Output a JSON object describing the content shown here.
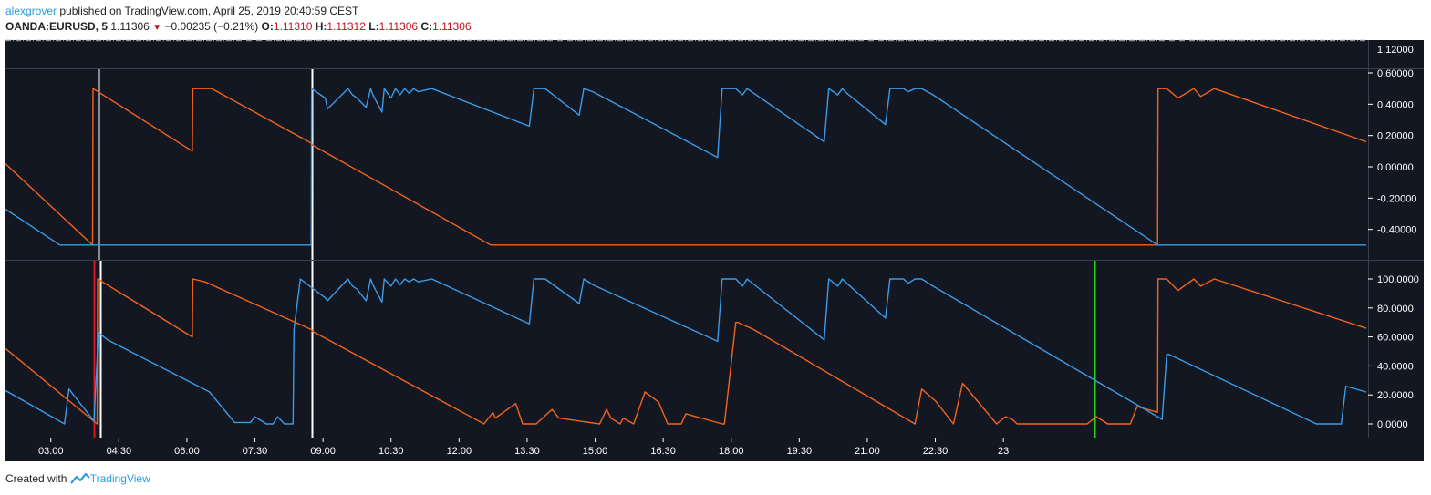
{
  "header": {
    "author": "alexgrover",
    "published_text": "published on TradingView.com, April 25, 2019 20:40:59 CEST",
    "symbol": "OANDA:EURUSD, 5",
    "last": "1.11306",
    "change": "−0.00235 (−0.21%)",
    "o_label": "O:",
    "o_value": "1.11310",
    "h_label": "H:",
    "h_value": "1.11312",
    "l_label": "L:",
    "l_value": "1.11306",
    "c_label": "C:",
    "c_value": "1.11306"
  },
  "footer": {
    "created_with": "Created with",
    "brand": "TradingView"
  },
  "colors": {
    "background": "#131722",
    "orange": "#f4631d",
    "blue": "#3c9be6",
    "marker_white": "#ffffff",
    "marker_red": "#e5111c",
    "marker_green": "#26d41c"
  },
  "chart_data": [
    {
      "type": "line",
      "pane": "price",
      "y_ticks": [
        "1.12000"
      ]
    },
    {
      "type": "line",
      "pane": "oscillator-1",
      "ylim": [
        -0.55,
        0.62
      ],
      "y_ticks": [
        {
          "value": 0.6,
          "label": "0.60000"
        },
        {
          "value": 0.4,
          "label": "0.40000"
        },
        {
          "value": 0.2,
          "label": "0.20000"
        },
        {
          "value": 0.0,
          "label": "0.00000"
        },
        {
          "value": -0.2,
          "label": "-0.20000"
        },
        {
          "value": -0.4,
          "label": "-0.40000"
        }
      ],
      "series": [
        {
          "color": "#f4631d",
          "x": [
            0,
            1.92,
            1.93,
            4.12,
            4.13,
            4.55,
            6.75,
            6.76,
            10.7,
            25.4,
            25.41,
            25.6,
            25.85,
            26.2,
            26.35,
            26.65,
            30.0
          ],
          "y": [
            0.02,
            -0.5,
            0.5,
            0.1,
            0.5,
            0.5,
            0.15,
            0.14,
            -0.5,
            -0.5,
            0.5,
            0.5,
            0.44,
            0.5,
            0.45,
            0.5,
            0.16
          ]
        },
        {
          "color": "#3c9be6",
          "x": [
            0,
            1.2,
            6.74,
            6.75,
            7.05,
            7.1,
            7.55,
            7.65,
            7.75,
            7.95,
            8.05,
            8.1,
            8.3,
            8.35,
            8.5,
            8.6,
            8.7,
            8.8,
            8.9,
            9.0,
            9.1,
            9.4,
            11.55,
            11.65,
            11.9,
            12.65,
            12.75,
            12.95,
            15.7,
            15.8,
            16.1,
            16.25,
            16.35,
            18.05,
            18.15,
            18.35,
            18.45,
            18.55,
            19.4,
            19.5,
            19.8,
            19.9,
            20.05,
            20.2,
            20.45,
            25.4,
            30.0
          ],
          "y": [
            -0.27,
            -0.5,
            -0.5,
            0.5,
            0.44,
            0.37,
            0.5,
            0.46,
            0.44,
            0.38,
            0.5,
            0.46,
            0.35,
            0.5,
            0.44,
            0.5,
            0.46,
            0.5,
            0.47,
            0.5,
            0.48,
            0.5,
            0.26,
            0.5,
            0.5,
            0.33,
            0.5,
            0.48,
            0.06,
            0.5,
            0.5,
            0.46,
            0.5,
            0.16,
            0.5,
            0.46,
            0.5,
            0.47,
            0.27,
            0.5,
            0.5,
            0.48,
            0.5,
            0.5,
            0.46,
            -0.5,
            -0.5
          ]
        }
      ]
    },
    {
      "type": "line",
      "pane": "oscillator-2",
      "ylim": [
        -8,
        112
      ],
      "y_ticks": [
        {
          "value": 100,
          "label": "100.0000"
        },
        {
          "value": 80,
          "label": "80.0000"
        },
        {
          "value": 60,
          "label": "60.0000"
        },
        {
          "value": 40,
          "label": "40.0000"
        },
        {
          "value": 20,
          "label": "20.0000"
        },
        {
          "value": 0,
          "label": "0.0000"
        }
      ],
      "series": [
        {
          "color": "#f4631d",
          "x": [
            0,
            2.02,
            2.03,
            4.12,
            4.13,
            4.4,
            6.75,
            6.76,
            10.55,
            10.75,
            10.8,
            11.25,
            11.4,
            11.7,
            12.05,
            12.2,
            13.1,
            13.25,
            13.35,
            13.55,
            13.62,
            13.85,
            14.1,
            14.4,
            14.6,
            14.9,
            15.0,
            15.8,
            15.85,
            16.1,
            16.15,
            16.5,
            20.05,
            20.2,
            20.5,
            20.9,
            21.1,
            21.85,
            22.05,
            22.2,
            22.3,
            23.85,
            24.05,
            24.3,
            24.8,
            24.95,
            25.4,
            25.41,
            25.6,
            25.85,
            26.2,
            26.35,
            26.65,
            30.0
          ],
          "y": [
            52,
            0,
            100,
            60,
            100,
            98,
            65,
            64,
            0,
            8,
            4,
            14,
            0,
            0,
            10,
            4,
            0,
            10,
            4,
            0,
            4,
            0,
            22,
            15,
            0,
            0,
            7,
            0,
            0,
            70,
            70,
            65,
            0,
            24,
            16,
            0,
            28,
            0,
            5,
            3,
            0,
            0,
            5,
            0,
            0,
            12,
            8,
            100,
            100,
            92,
            100,
            95,
            100,
            66
          ]
        },
        {
          "color": "#3c9be6",
          "x": [
            0,
            1.3,
            1.4,
            1.95,
            2.05,
            2.25,
            4.5,
            5.05,
            5.4,
            5.5,
            5.75,
            5.9,
            6.0,
            6.15,
            6.34,
            6.36,
            6.5,
            6.75,
            7.05,
            7.1,
            7.55,
            7.65,
            7.75,
            7.95,
            8.05,
            8.1,
            8.3,
            8.35,
            8.5,
            8.6,
            8.7,
            8.8,
            8.9,
            9.0,
            9.1,
            9.4,
            11.55,
            11.65,
            11.9,
            12.65,
            12.75,
            12.95,
            15.7,
            15.8,
            16.1,
            16.25,
            16.35,
            18.05,
            18.15,
            18.35,
            18.45,
            18.55,
            19.4,
            19.5,
            19.8,
            19.9,
            20.05,
            20.2,
            20.45,
            25.4,
            25.5,
            25.6,
            25.65,
            28.9,
            29.15,
            29.45,
            29.55,
            30.0
          ],
          "y": [
            23,
            0,
            24,
            2,
            63,
            58,
            22,
            1,
            1,
            5,
            0,
            0,
            5,
            0,
            0,
            65,
            100,
            94,
            87,
            85,
            100,
            95,
            93,
            85,
            100,
            96,
            84,
            100,
            95,
            100,
            96,
            100,
            98,
            100,
            98,
            100,
            69,
            100,
            100,
            83,
            100,
            96,
            57,
            100,
            100,
            95,
            100,
            58,
            100,
            95,
            100,
            97,
            73,
            100,
            100,
            97,
            100,
            100,
            95,
            5,
            3,
            48,
            48,
            0,
            0,
            0,
            26,
            22
          ]
        }
      ]
    }
  ],
  "markers": [
    {
      "pane": "oscillator-1",
      "x": 2.05,
      "color": "#ffffff"
    },
    {
      "pane": "oscillator-1",
      "x": 6.75,
      "color": "#ffffff"
    },
    {
      "pane": "oscillator-2",
      "x": 1.95,
      "color": "#e5111c"
    },
    {
      "pane": "oscillator-2",
      "x": 2.1,
      "color": "#ffffff"
    },
    {
      "pane": "oscillator-2",
      "x": 6.75,
      "color": "#ffffff"
    },
    {
      "pane": "oscillator-2",
      "x": 24.0,
      "color": "#26d41c"
    }
  ],
  "x_ticks": [
    {
      "x": 1.0,
      "label": "03:00"
    },
    {
      "x": 2.5,
      "label": "04:30"
    },
    {
      "x": 4.0,
      "label": "06:00"
    },
    {
      "x": 5.5,
      "label": "07:30"
    },
    {
      "x": 7.0,
      "label": "09:00"
    },
    {
      "x": 8.5,
      "label": "10:30"
    },
    {
      "x": 10.0,
      "label": "12:00"
    },
    {
      "x": 11.5,
      "label": "13:30"
    },
    {
      "x": 13.0,
      "label": "15:00"
    },
    {
      "x": 14.5,
      "label": "16:30"
    },
    {
      "x": 16.0,
      "label": "18:00"
    },
    {
      "x": 17.5,
      "label": "19:30"
    },
    {
      "x": 19.0,
      "label": "21:00"
    },
    {
      "x": 20.5,
      "label": "22:30"
    },
    {
      "x": 22.0,
      "label": "23"
    }
  ]
}
